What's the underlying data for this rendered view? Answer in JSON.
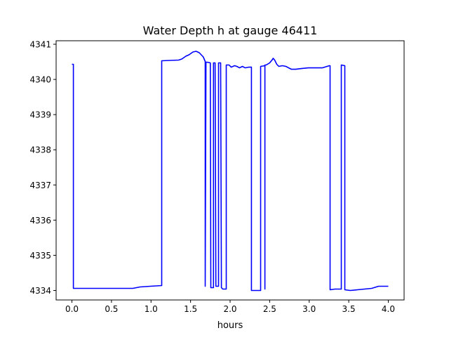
{
  "chart_data": {
    "type": "line",
    "title": "Water Depth h at gauge 46411",
    "xlabel": "hours",
    "ylabel": "",
    "xlim": [
      -0.2,
      4.2
    ],
    "ylim": [
      4333.73,
      4341.1
    ],
    "xticks": [
      0.0,
      0.5,
      1.0,
      1.5,
      2.0,
      2.5,
      3.0,
      3.5,
      4.0
    ],
    "xtick_labels": [
      "0.0",
      "0.5",
      "1.0",
      "1.5",
      "2.0",
      "2.5",
      "3.0",
      "3.5",
      "4.0"
    ],
    "yticks": [
      4334,
      4335,
      4336,
      4337,
      4338,
      4339,
      4340,
      4341
    ],
    "ytick_labels": [
      "4334",
      "4335",
      "4336",
      "4337",
      "4338",
      "4339",
      "4340",
      "4341"
    ],
    "grid": false,
    "series": [
      {
        "name": "h",
        "color": "#0000ff",
        "x": [
          0,
          0.018,
          0.018,
          0.77,
          0.86,
          0.99,
          1.135,
          1.135,
          1.35,
          1.39,
          1.44,
          1.48,
          1.53,
          1.57,
          1.61,
          1.66,
          1.685,
          1.685,
          1.695,
          1.71,
          1.75,
          1.756,
          1.79,
          1.79,
          1.8,
          1.81,
          1.82,
          1.854,
          1.854,
          1.862,
          1.88,
          1.89,
          1.907,
          1.951,
          1.951,
          1.987,
          2.013,
          2.057,
          2.084,
          2.12,
          2.155,
          2.19,
          2.235,
          2.27,
          2.27,
          2.386,
          2.386,
          2.44,
          2.44,
          2.44,
          2.457,
          2.5,
          2.53,
          2.545,
          2.563,
          2.59,
          2.616,
          2.66,
          2.705,
          2.74,
          2.776,
          2.83,
          2.9,
          2.99,
          3.08,
          3.166,
          3.255,
          3.264,
          3.264,
          3.326,
          3.406,
          3.406,
          3.45,
          3.45,
          3.52,
          3.61,
          3.7,
          3.79,
          3.876,
          4.0
        ],
        "y": [
          4340.43,
          4340.43,
          4334.06,
          4334.06,
          4334.1,
          4334.12,
          4334.14,
          4340.53,
          4340.55,
          4340.58,
          4340.66,
          4340.7,
          4340.78,
          4340.8,
          4340.76,
          4340.64,
          4340.51,
          4334.12,
          4340.49,
          4340.49,
          4340.47,
          4334.08,
          4334.08,
          4340.47,
          4340.47,
          4340.47,
          4334.12,
          4334.12,
          4340.47,
          4340.47,
          4340.47,
          4334.08,
          4334.04,
          4334.04,
          4340.41,
          4340.41,
          4340.35,
          4340.39,
          4340.37,
          4340.33,
          4340.37,
          4340.33,
          4340.35,
          4340.35,
          4334.0,
          4334.0,
          4340.37,
          4340.39,
          4334.04,
          4340.41,
          4340.41,
          4340.47,
          4340.55,
          4340.6,
          4340.55,
          4340.43,
          4340.37,
          4340.39,
          4340.37,
          4340.33,
          4340.29,
          4340.29,
          4340.31,
          4340.33,
          4340.33,
          4340.33,
          4340.39,
          4340.39,
          4334.02,
          4334.04,
          4334.04,
          4340.41,
          4340.39,
          4334.02,
          4334.0,
          4334.02,
          4334.04,
          4334.06,
          4334.12,
          4334.12
        ]
      }
    ]
  }
}
